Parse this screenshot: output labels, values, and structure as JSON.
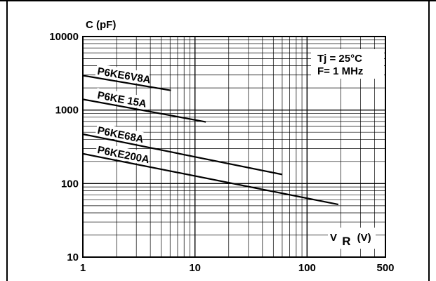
{
  "chart_data": {
    "type": "line",
    "x_scale": "log",
    "y_scale": "log",
    "xlim": [
      1,
      500
    ],
    "ylim": [
      10,
      10000
    ],
    "x_ticks": [
      {
        "value": 1,
        "label": "1"
      },
      {
        "value": 10,
        "label": "10"
      },
      {
        "value": 100,
        "label": "100"
      },
      {
        "value": 500,
        "label": "500"
      }
    ],
    "y_ticks": [
      {
        "value": 10,
        "label": "10"
      },
      {
        "value": 100,
        "label": "100"
      },
      {
        "value": 1000,
        "label": "1000"
      },
      {
        "value": 10000,
        "label": "10000"
      }
    ],
    "ylabel": "C  (pF)",
    "xlabel_main": "V",
    "xlabel_sub": "R",
    "xlabel_unit": "(V)",
    "grid": true,
    "annotations": [
      "Tj = 25°C",
      "F= 1 MHz"
    ],
    "series": [
      {
        "name": "P6KE6V8A",
        "color": "#000000",
        "x": [
          1,
          6.1
        ],
        "y": [
          2950,
          1850
        ]
      },
      {
        "name": "P6KE 15A",
        "color": "#000000",
        "x": [
          1,
          12.5
        ],
        "y": [
          1400,
          690
        ]
      },
      {
        "name": "P6KE68A",
        "color": "#000000",
        "x": [
          1,
          60
        ],
        "y": [
          470,
          133
        ]
      },
      {
        "name": "P6KE200A",
        "color": "#000000",
        "x": [
          1,
          190
        ],
        "y": [
          255,
          52
        ]
      }
    ]
  }
}
